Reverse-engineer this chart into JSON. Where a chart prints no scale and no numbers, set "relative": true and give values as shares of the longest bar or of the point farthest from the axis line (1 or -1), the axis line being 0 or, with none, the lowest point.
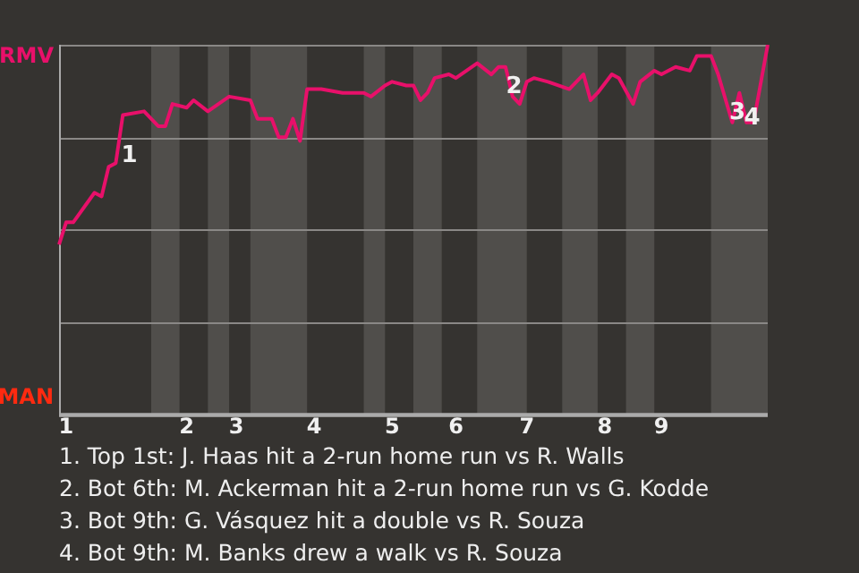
{
  "chart_data": {
    "type": "line",
    "relative": true,
    "categories": [
      null,
      "1",
      null,
      null,
      null,
      null,
      null,
      null,
      null,
      null,
      null,
      null,
      null,
      null,
      null,
      null,
      null,
      null,
      "2",
      null,
      null,
      null,
      null,
      null,
      null,
      "3",
      null,
      null,
      null,
      null,
      null,
      null,
      null,
      null,
      null,
      null,
      "4",
      null,
      null,
      null,
      null,
      null,
      null,
      null,
      null,
      null,
      null,
      "5",
      null,
      null,
      null,
      null,
      null,
      null,
      null,
      null,
      "6",
      null,
      null,
      null,
      null,
      null,
      null,
      null,
      null,
      null,
      "7",
      null,
      null,
      null,
      null,
      null,
      null,
      null,
      null,
      null,
      null,
      "8",
      null,
      null,
      null,
      null,
      null,
      null,
      null,
      "9",
      null,
      null,
      null,
      null,
      null,
      null,
      null,
      null,
      null,
      null,
      null,
      null,
      null,
      null,
      null
    ],
    "series": [
      {
        "color": "#e8106a",
        "values": [
          0.46,
          0.52,
          0.52,
          null,
          null,
          0.6,
          0.59,
          0.67,
          0.68,
          0.81,
          null,
          null,
          0.82,
          null,
          0.78,
          0.78,
          0.84,
          null,
          0.83,
          0.85,
          null,
          0.82,
          null,
          null,
          0.86,
          null,
          null,
          0.85,
          0.8,
          null,
          0.8,
          0.75,
          0.75,
          0.8,
          0.74,
          0.88,
          null,
          0.88,
          null,
          null,
          0.87,
          null,
          null,
          0.87,
          0.86,
          null,
          0.89,
          0.9,
          null,
          0.89,
          0.89,
          0.85,
          0.87,
          0.91,
          null,
          0.92,
          0.91,
          null,
          null,
          0.95,
          null,
          0.92,
          0.94,
          0.94,
          0.86,
          0.84,
          0.9,
          0.91,
          null,
          0.9,
          null,
          null,
          0.88,
          null,
          0.92,
          0.85,
          0.87,
          null,
          0.92,
          0.91,
          null,
          0.84,
          0.9,
          null,
          0.93,
          0.92,
          null,
          0.94,
          null,
          0.93,
          0.97,
          null,
          0.97,
          0.92,
          null,
          0.79,
          0.87,
          0.79,
          0.79,
          null,
          1
        ]
      }
    ],
    "grid": "y",
    "marker": "none",
    "annotations": [
      "RMV",
      "MAN",
      "1",
      "2",
      "3",
      "4",
      "1. Top 1st: J. Haas hit a 2-run home run vs R. Walls",
      "2. Bot 6th: M. Ackerman hit a 2-run home run vs G. Kodde",
      "3. Bot 9th: G. Vásquez hit a double vs R. Souza",
      "4. Bot 9th: M. Banks drew a walk vs R. Souza"
    ]
  }
}
